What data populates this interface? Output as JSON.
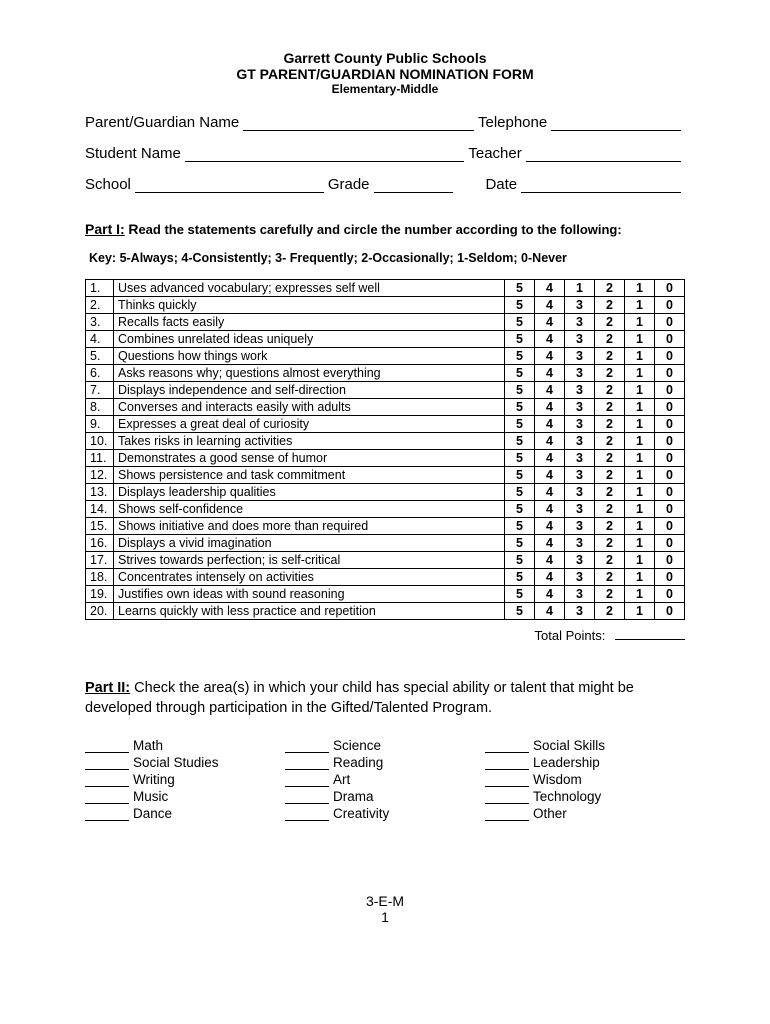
{
  "header": {
    "line1": "Garrett County Public Schools",
    "line2": "GT PARENT/GUARDIAN NOMINATION FORM",
    "line3": "Elementary-Middle"
  },
  "fields": {
    "parent_label": "Parent/Guardian Name",
    "telephone_label": "Telephone",
    "student_label": "Student Name",
    "teacher_label": "Teacher",
    "school_label": "School",
    "grade_label": "Grade",
    "date_label": "Date"
  },
  "part1": {
    "title_prefix": "Part I:",
    "title_rest": "Read the statements carefully and circle the number according to the following:",
    "key": "Key:  5-Always;   4-Consistently; 3- Frequently; 2-Occasionally;  1-Seldom;   0-Never",
    "statements": [
      "Uses advanced vocabulary; expresses self well",
      "Thinks quickly",
      "Recalls facts easily",
      "Combines unrelated ideas uniquely",
      "Questions how things work",
      "Asks reasons why; questions almost everything",
      "Displays independence and self-direction",
      "Converses and interacts easily with adults",
      "Expresses a great deal of curiosity",
      "Takes risks in learning activities",
      "Demonstrates a good sense of humor",
      "Shows persistence and task commitment",
      "Displays leadership qualities",
      "Shows self-confidence",
      "Shows initiative and does more than required",
      "Displays a vivid imagination",
      "Strives towards perfection; is self-critical",
      "Concentrates intensely on activities",
      "Justifies own ideas with sound reasoning",
      "Learns quickly with less practice and repetition"
    ],
    "row1_scores": [
      "5",
      "4",
      "1",
      "2",
      "1",
      "0"
    ],
    "default_scores": [
      "5",
      "4",
      "3",
      "2",
      "1",
      "0"
    ],
    "total_label": "Total Points:"
  },
  "part2": {
    "title_prefix": "Part II:",
    "text": "Check the area(s) in which your child has special ability or talent that might be developed through participation in the Gifted/Talented Program.",
    "col1": [
      "Math",
      "Social Studies",
      "Writing",
      "Music",
      "Dance"
    ],
    "col2": [
      "Science",
      "Reading",
      "Art",
      "Drama",
      "Creativity"
    ],
    "col3": [
      "Social Skills",
      "Leadership",
      "Wisdom",
      "Technology",
      "Other"
    ]
  },
  "footer": {
    "code": "3-E-M",
    "page": "1"
  }
}
